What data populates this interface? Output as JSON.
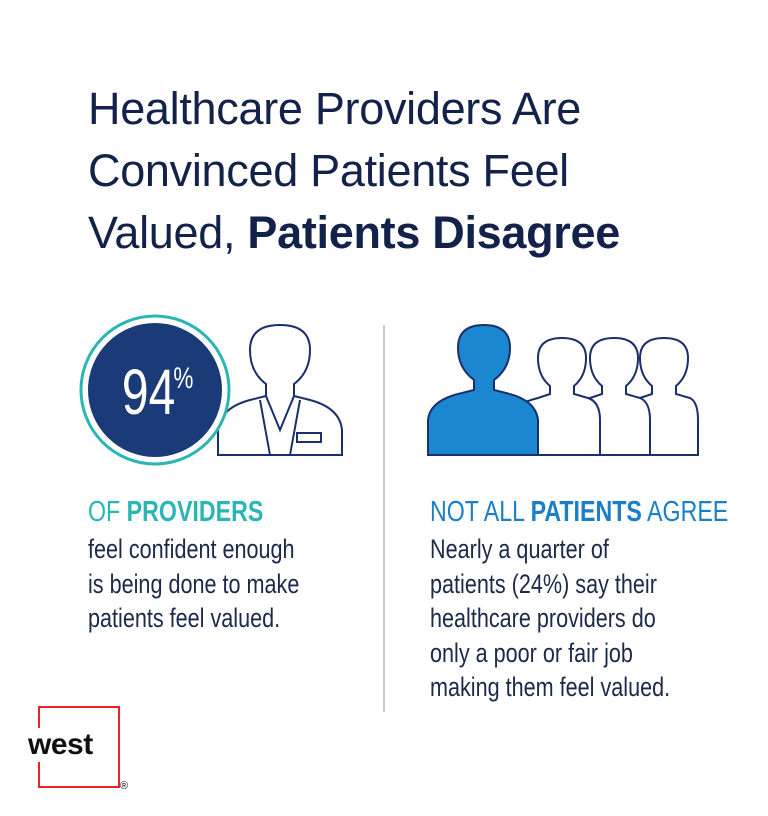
{
  "title": {
    "line1": "Healthcare Providers Are",
    "line2": "Convinced Patients Feel",
    "line3_regular": "Valued,",
    "line3_bold": "Patients Disagree"
  },
  "providers": {
    "stat_value": "94",
    "stat_unit": "%",
    "heading_prefix": "OF",
    "heading_bold": "PROVIDERS",
    "body": [
      "feel confident enough",
      "is being done to make",
      "patients feel valued."
    ]
  },
  "patients": {
    "heading_prefix": "NOT ALL",
    "heading_bold": "PATIENTS",
    "heading_suffix": "AGREE",
    "body": [
      "Nearly a quarter of",
      "patients (24%) say their",
      "healthcare providers do",
      "only a poor or fair job",
      "making them feel valued."
    ]
  },
  "logo": {
    "text": "west",
    "registered": "®"
  }
}
